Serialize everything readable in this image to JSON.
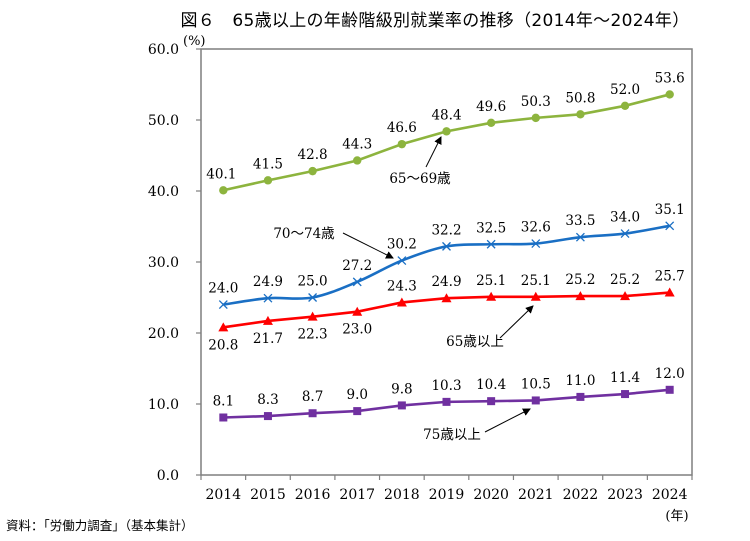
{
  "title": "図６　65歳以上の年齢階級別就業率の推移（2014年～2024年）",
  "source": "資料：「労働力調査」（基本集計）",
  "chart_data": {
    "type": "line",
    "title": "図６　65歳以上の年齢階級別就業率の推移（2014年～2024年）",
    "xlabel": "(年)",
    "ylabel": "(%)",
    "ylim": [
      0,
      60
    ],
    "yticks": [
      "0.0",
      "10.0",
      "20.0",
      "30.0",
      "40.0",
      "50.0",
      "60.0"
    ],
    "yticks_values": [
      0,
      10,
      20,
      30,
      40,
      50,
      60
    ],
    "categories": [
      "2014",
      "2015",
      "2016",
      "2017",
      "2018",
      "2019",
      "2020",
      "2021",
      "2022",
      "2023",
      "2024"
    ],
    "grid": false,
    "legend": "none (inline annotations with arrows)",
    "series": [
      {
        "name": "65～69歳",
        "color": "#8db43e",
        "marker": "circle",
        "values": [
          40.1,
          41.5,
          42.8,
          44.3,
          46.6,
          48.4,
          49.6,
          50.3,
          50.8,
          52.0,
          53.6
        ],
        "labels": [
          "40.1",
          "41.5",
          "42.8",
          "44.3",
          "46.6",
          "48.4",
          "49.6",
          "50.3",
          "50.8",
          "52.0",
          "53.6"
        ],
        "label_position": "above",
        "annotation": {
          "text": "65～69歳",
          "points_to": "2019"
        }
      },
      {
        "name": "70～74歳",
        "color": "#1a6fc4",
        "marker": "x",
        "values": [
          24.0,
          24.9,
          25.0,
          27.2,
          30.2,
          32.2,
          32.5,
          32.6,
          33.5,
          34.0,
          35.1
        ],
        "labels": [
          "24.0",
          "24.9",
          "25.0",
          "27.2",
          "30.2",
          "32.2",
          "32.5",
          "32.6",
          "33.5",
          "34.0",
          "35.1"
        ],
        "label_position": "above",
        "annotation": {
          "text": "70～74歳",
          "points_to": "2018"
        }
      },
      {
        "name": "65歳以上",
        "color": "#ff0000",
        "marker": "triangle",
        "values": [
          20.8,
          21.7,
          22.3,
          23.0,
          24.3,
          24.9,
          25.1,
          25.1,
          25.2,
          25.2,
          25.7
        ],
        "labels": [
          "20.8",
          "21.7",
          "22.3",
          "23.0",
          "24.3",
          "24.9",
          "25.1",
          "25.1",
          "25.2",
          "25.2",
          "25.7"
        ],
        "label_position": "below-then-above",
        "annotation": {
          "text": "65歳以上",
          "points_to": "2021"
        }
      },
      {
        "name": "75歳以上",
        "color": "#7030a0",
        "marker": "square",
        "values": [
          8.1,
          8.3,
          8.7,
          9.0,
          9.8,
          10.3,
          10.4,
          10.5,
          11.0,
          11.4,
          12.0
        ],
        "labels": [
          "8.1",
          "8.3",
          "8.7",
          "9.0",
          "9.8",
          "10.3",
          "10.4",
          "10.5",
          "11.0",
          "11.4",
          "12.0"
        ],
        "label_position": "above",
        "annotation": {
          "text": "75歳以上",
          "points_to": "2021"
        }
      }
    ]
  }
}
